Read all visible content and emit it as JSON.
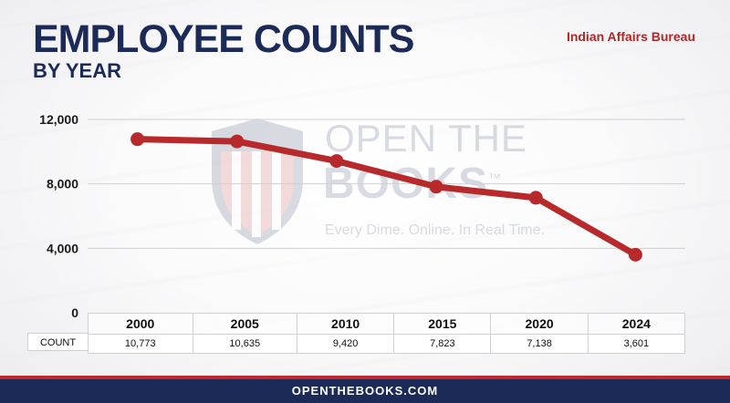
{
  "header": {
    "title": "EMPLOYEE COUNTS",
    "subtitle": "BY YEAR",
    "agency": "Indian Affairs Bureau"
  },
  "watermark": {
    "line1": "OPEN THE",
    "line2": "BOOKS",
    "tm": "™",
    "tagline": "Every Dime. Online. In Real Time."
  },
  "table": {
    "row_label": "COUNT"
  },
  "footer": {
    "site": "OPENTHEBOOKS.COM"
  },
  "colors": {
    "navy": "#1b2a57",
    "accent_red": "#b22626",
    "line_red": "#b7292b"
  },
  "chart_data": {
    "type": "line",
    "title": "EMPLOYEE COUNTS",
    "subtitle": "BY YEAR",
    "categories": [
      "2000",
      "2005",
      "2010",
      "2015",
      "2020",
      "2024"
    ],
    "values": [
      10773,
      10635,
      9420,
      7823,
      7138,
      3601
    ],
    "value_labels": [
      "10,773",
      "10,635",
      "9,420",
      "7,823",
      "7,138",
      "3,601"
    ],
    "yticks": [
      0,
      4000,
      8000,
      12000
    ],
    "ytick_labels": [
      "0",
      "4,000",
      "8,000",
      "12,000"
    ],
    "ylim": [
      0,
      12000
    ],
    "grid": true,
    "xlabel": "",
    "ylabel": ""
  }
}
